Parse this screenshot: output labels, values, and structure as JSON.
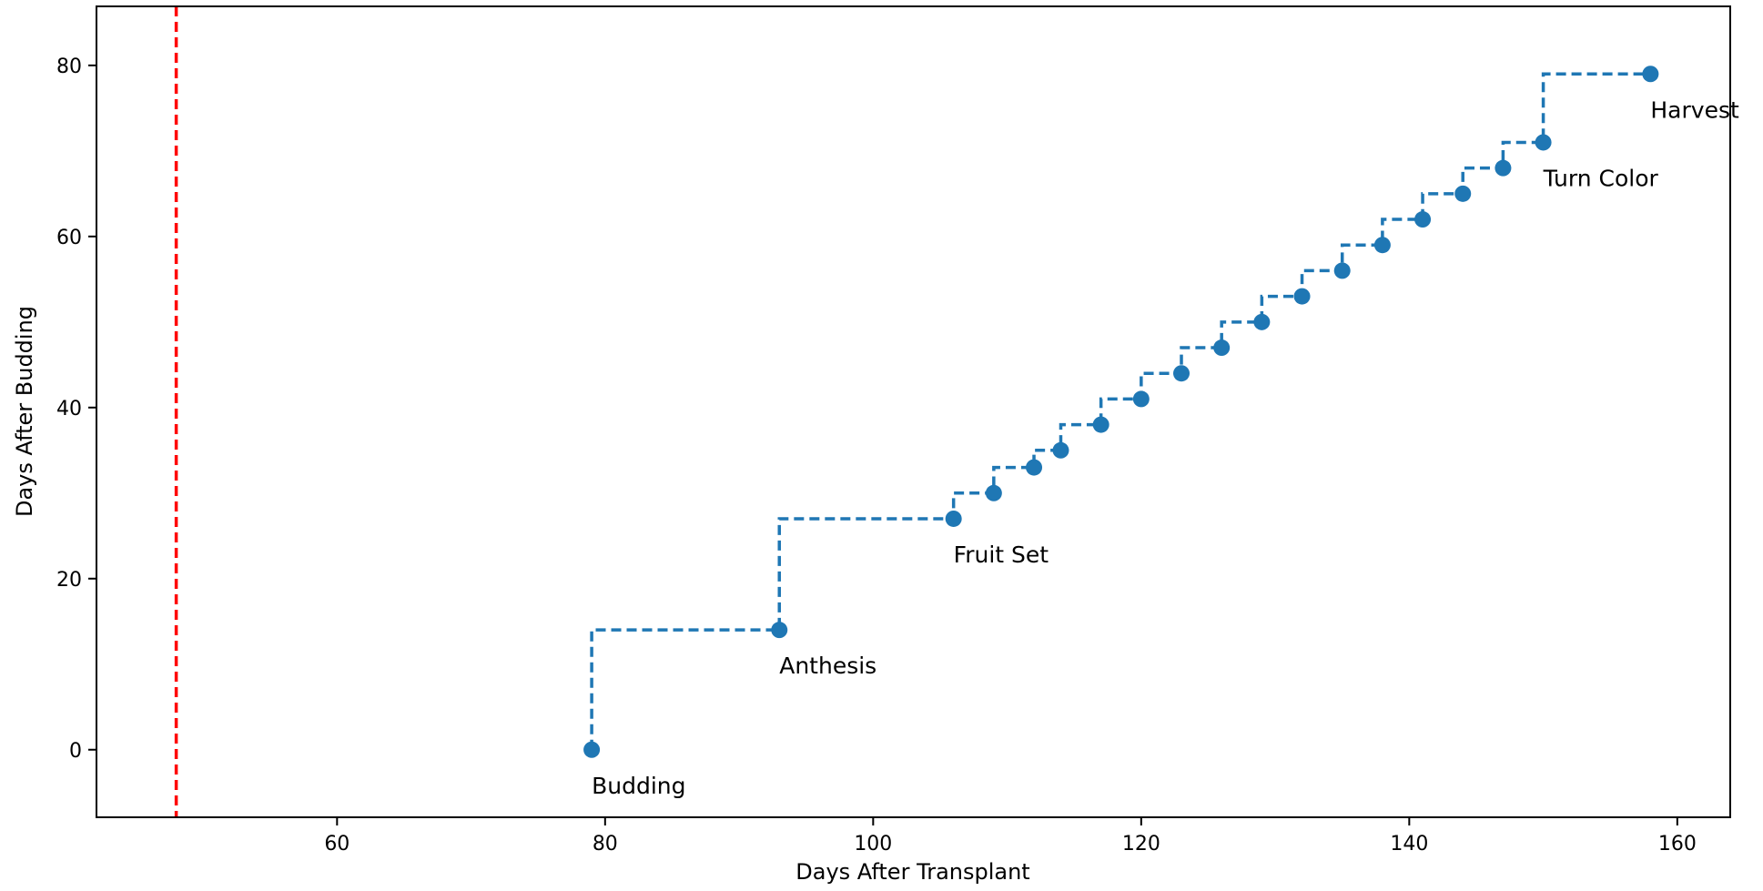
{
  "chart_data": {
    "type": "line",
    "title": "",
    "xlabel": "Days After Transplant",
    "ylabel": "Days After Budding",
    "xlim": [
      42.05,
      163.95
    ],
    "ylim": [
      -7.9,
      86.9
    ],
    "xticks": [
      60,
      80,
      100,
      120,
      140,
      160
    ],
    "yticks": [
      0,
      20,
      40,
      60,
      80
    ],
    "grid": false,
    "line_style": "dashed",
    "step": "pre",
    "colors": {
      "series": "#1f77b4",
      "reference_line": "#ff0000"
    },
    "reference_line": {
      "orientation": "vertical",
      "x": 48,
      "style": "dashed"
    },
    "series": [
      {
        "x": [
          79,
          93,
          106,
          109,
          112,
          114,
          117,
          120,
          123,
          126,
          129,
          132,
          135,
          138,
          141,
          144,
          147,
          150,
          158
        ],
        "y": [
          0,
          14,
          27,
          30,
          33,
          35,
          38,
          41,
          44,
          47,
          50,
          53,
          56,
          59,
          62,
          65,
          68,
          71,
          79
        ]
      }
    ],
    "annotations": [
      {
        "text": "Budding",
        "x": 79,
        "y": 0
      },
      {
        "text": "Anthesis",
        "x": 93,
        "y": 14
      },
      {
        "text": "Fruit Set",
        "x": 106,
        "y": 27
      },
      {
        "text": "Turn Color",
        "x": 150,
        "y": 71
      },
      {
        "text": "Harvest",
        "x": 158,
        "y": 79
      }
    ]
  }
}
